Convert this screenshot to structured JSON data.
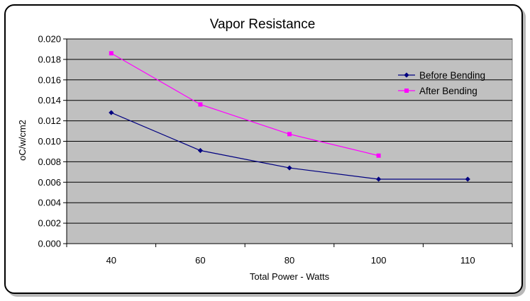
{
  "chart_data": {
    "type": "line",
    "title": "Vapor Resistance",
    "xlabel": "Total Power - Watts",
    "ylabel": "oC/w/cm2",
    "categories": [
      "40",
      "60",
      "80",
      "100",
      "110"
    ],
    "ylim": [
      0,
      0.02
    ],
    "yticks": [
      "0.000",
      "0.002",
      "0.004",
      "0.006",
      "0.008",
      "0.010",
      "0.012",
      "0.014",
      "0.016",
      "0.018",
      "0.020"
    ],
    "ytick_values": [
      0,
      0.002,
      0.004,
      0.006,
      0.008,
      0.01,
      0.012,
      0.014,
      0.016,
      0.018,
      0.02
    ],
    "grid": true,
    "legend": "right",
    "series": [
      {
        "name": "Before Bending",
        "color": "#000080",
        "marker": "diamond",
        "values": [
          0.0128,
          0.0091,
          0.0074,
          0.0063,
          0.0063
        ]
      },
      {
        "name": "After Bending",
        "color": "#ff00ff",
        "marker": "square",
        "values": [
          0.0186,
          0.0136,
          0.0107,
          0.0086,
          null
        ]
      }
    ],
    "plot_background": "#c0c0c0"
  }
}
